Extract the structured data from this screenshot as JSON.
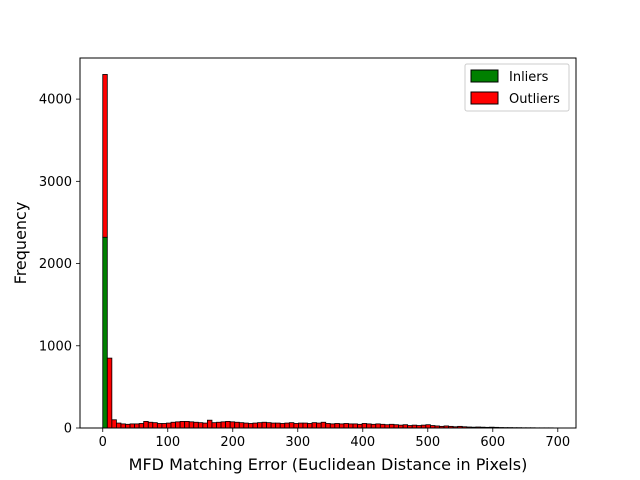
{
  "chart_data": {
    "type": "bar",
    "subtype": "stacked-histogram",
    "title": "",
    "xlabel": "MFD Matching Error (Euclidean Distance in Pixels)",
    "ylabel": "Frequency",
    "xlim": [
      -35,
      728
    ],
    "ylim": [
      0,
      4500
    ],
    "xticks": [
      0,
      100,
      200,
      300,
      400,
      500,
      600,
      700
    ],
    "yticks": [
      0,
      1000,
      2000,
      3000,
      4000
    ],
    "bin_width": 7,
    "bin_start": 0,
    "legend_position": "top-right",
    "grid": false,
    "series": [
      {
        "name": "Inliers",
        "color": "#008000",
        "values": [
          2320,
          0
        ]
      },
      {
        "name": "Outliers",
        "color": "#ff0000",
        "values": [
          1980,
          850,
          100,
          60,
          50,
          45,
          50,
          50,
          55,
          80,
          70,
          65,
          55,
          55,
          60,
          70,
          75,
          80,
          80,
          75,
          70,
          65,
          60,
          95,
          65,
          70,
          75,
          80,
          75,
          70,
          65,
          60,
          55,
          60,
          65,
          70,
          65,
          60,
          60,
          55,
          60,
          65,
          55,
          60,
          60,
          55,
          65,
          60,
          70,
          55,
          50,
          55,
          50,
          55,
          50,
          50,
          45,
          55,
          50,
          45,
          50,
          45,
          40,
          45,
          40,
          35,
          40,
          30,
          35,
          30,
          35,
          40,
          30,
          25,
          20,
          25,
          20,
          15,
          20,
          15,
          12,
          10,
          12,
          10,
          8,
          10,
          8,
          6,
          5,
          5,
          4,
          4,
          3,
          3,
          3,
          2,
          2,
          2,
          2,
          1
        ]
      }
    ]
  }
}
